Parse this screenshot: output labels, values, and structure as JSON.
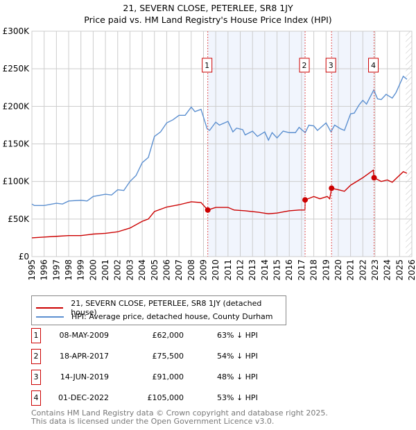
{
  "chart_data": {
    "type": "line",
    "title": "21, SEVERN CLOSE, PETERLEE, SR8 1JY",
    "subtitle": "Price paid vs. HM Land Registry's House Price Index (HPI)",
    "xlim": [
      1995,
      2026
    ],
    "ylim": [
      0,
      300000
    ],
    "y_ticks": [
      {
        "v": 0,
        "label": "£0"
      },
      {
        "v": 50000,
        "label": "£50K"
      },
      {
        "v": 100000,
        "label": "£100K"
      },
      {
        "v": 150000,
        "label": "£150K"
      },
      {
        "v": 200000,
        "label": "£200K"
      },
      {
        "v": 250000,
        "label": "£250K"
      },
      {
        "v": 300000,
        "label": "£300K"
      }
    ],
    "x_ticks": [
      "1995",
      "1996",
      "1997",
      "1998",
      "1999",
      "2000",
      "2001",
      "2002",
      "2003",
      "2004",
      "2005",
      "2006",
      "2007",
      "2008",
      "2009",
      "2010",
      "2011",
      "2012",
      "2013",
      "2014",
      "2015",
      "2016",
      "2017",
      "2018",
      "2019",
      "2020",
      "2021",
      "2022",
      "2023",
      "2024",
      "2025",
      "2026"
    ],
    "grid": true,
    "series": [
      {
        "name": "21, SEVERN CLOSE, PETERLEE, SR8 1JY (detached house)",
        "color": "#cc0000",
        "points": [
          [
            1995,
            25
          ],
          [
            1996,
            26
          ],
          [
            1997,
            27
          ],
          [
            1998,
            28
          ],
          [
            1999,
            28
          ],
          [
            2000,
            30
          ],
          [
            2001,
            31
          ],
          [
            2002,
            33
          ],
          [
            2003,
            38
          ],
          [
            2004,
            47
          ],
          [
            2004.5,
            50
          ],
          [
            2005,
            60
          ],
          [
            2006,
            66
          ],
          [
            2007,
            69
          ],
          [
            2008,
            73
          ],
          [
            2008.8,
            72
          ],
          [
            2009.35,
            62
          ],
          [
            2010,
            65.5
          ],
          [
            2011,
            65.5
          ],
          [
            2011.5,
            62
          ],
          [
            2012.4,
            61
          ],
          [
            2013.5,
            59
          ],
          [
            2014.3,
            57
          ],
          [
            2015,
            58
          ],
          [
            2016,
            61
          ],
          [
            2016.8,
            62
          ],
          [
            2017.28,
            62
          ],
          [
            2017.3,
            75.5
          ],
          [
            2018,
            80
          ],
          [
            2018.5,
            77
          ],
          [
            2019.1,
            80
          ],
          [
            2019.3,
            77
          ],
          [
            2019.45,
            91
          ],
          [
            2020,
            89
          ],
          [
            2020.5,
            87
          ],
          [
            2021,
            95
          ],
          [
            2022,
            105
          ],
          [
            2022.85,
            115
          ],
          [
            2022.92,
            105
          ],
          [
            2023.5,
            100
          ],
          [
            2024,
            102
          ],
          [
            2024.4,
            99
          ],
          [
            2025.3,
            113
          ],
          [
            2025.6,
            111
          ]
        ]
      },
      {
        "name": "HPI: Average price, detached house, County Durham",
        "color": "#5b8fd0",
        "points": [
          [
            1995,
            70
          ],
          [
            1995.2,
            68
          ],
          [
            1996,
            68
          ],
          [
            1997,
            71
          ],
          [
            1997.5,
            70
          ],
          [
            1998,
            74
          ],
          [
            1999,
            75
          ],
          [
            1999.5,
            74
          ],
          [
            2000,
            80
          ],
          [
            2001,
            83
          ],
          [
            2001.5,
            82
          ],
          [
            2002,
            89
          ],
          [
            2002.5,
            88
          ],
          [
            2003,
            100
          ],
          [
            2003.5,
            108
          ],
          [
            2004,
            125
          ],
          [
            2004.5,
            132
          ],
          [
            2005,
            160
          ],
          [
            2005.5,
            166
          ],
          [
            2006,
            178
          ],
          [
            2006.5,
            182
          ],
          [
            2007,
            188
          ],
          [
            2007.5,
            188
          ],
          [
            2008,
            199
          ],
          [
            2008.3,
            193
          ],
          [
            2008.8,
            196
          ],
          [
            2009.3,
            170
          ],
          [
            2009.5,
            168
          ],
          [
            2010,
            179
          ],
          [
            2010.3,
            175
          ],
          [
            2011,
            180
          ],
          [
            2011.4,
            166
          ],
          [
            2011.7,
            171
          ],
          [
            2012.2,
            169
          ],
          [
            2012.4,
            162
          ],
          [
            2013,
            167
          ],
          [
            2013.4,
            160
          ],
          [
            2014,
            166
          ],
          [
            2014.3,
            155
          ],
          [
            2014.6,
            165
          ],
          [
            2015,
            158
          ],
          [
            2015.5,
            167
          ],
          [
            2016,
            165
          ],
          [
            2016.5,
            165
          ],
          [
            2016.8,
            172
          ],
          [
            2017.3,
            165
          ],
          [
            2017.6,
            175
          ],
          [
            2018,
            174
          ],
          [
            2018.3,
            168
          ],
          [
            2019,
            178
          ],
          [
            2019.4,
            166
          ],
          [
            2019.7,
            175
          ],
          [
            2020.2,
            170
          ],
          [
            2020.5,
            168
          ],
          [
            2021,
            190
          ],
          [
            2021.3,
            191
          ],
          [
            2021.7,
            202
          ],
          [
            2022,
            208
          ],
          [
            2022.3,
            203
          ],
          [
            2022.9,
            222
          ],
          [
            2023.2,
            210
          ],
          [
            2023.5,
            209
          ],
          [
            2023.9,
            216
          ],
          [
            2024.4,
            211
          ],
          [
            2024.7,
            218
          ],
          [
            2025.3,
            240
          ],
          [
            2025.6,
            236
          ]
        ]
      }
    ],
    "value_unit": "thousand GBP",
    "shaded_ranges": [
      [
        2009.35,
        2017.29
      ],
      [
        2019.45,
        2022.92
      ]
    ],
    "forecast_from": 2025.5,
    "sales": [
      {
        "n": "1",
        "year": 2009.35,
        "value": 62000,
        "date": "08-MAY-2009",
        "price": "£62,000",
        "hpi": "63% ↓ HPI"
      },
      {
        "n": "2",
        "year": 2017.29,
        "value": 75500,
        "date": "18-APR-2017",
        "price": "£75,500",
        "hpi": "54% ↓ HPI"
      },
      {
        "n": "3",
        "year": 2019.45,
        "value": 91000,
        "date": "14-JUN-2019",
        "price": "£91,000",
        "hpi": "48% ↓ HPI"
      },
      {
        "n": "4",
        "year": 2022.92,
        "value": 105000,
        "date": "01-DEC-2022",
        "price": "£105,000",
        "hpi": "53% ↓ HPI"
      }
    ]
  },
  "footer": {
    "line1": "Contains HM Land Registry data © Crown copyright and database right 2025.",
    "line2": "This data is licensed under the Open Government Licence v3.0."
  }
}
